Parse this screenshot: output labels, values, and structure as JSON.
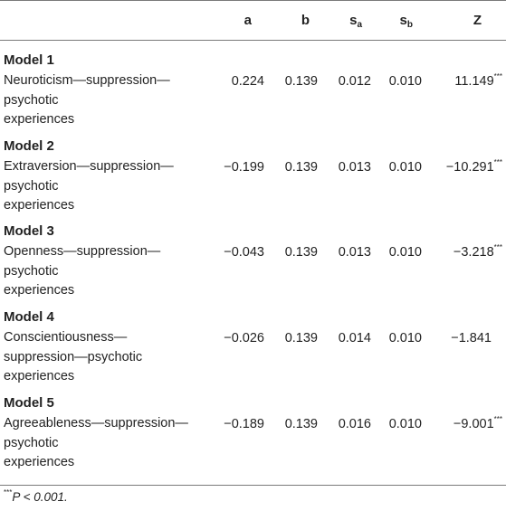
{
  "columns": {
    "a": "a",
    "b": "b",
    "sa_main": "s",
    "sa_sub": "a",
    "sb_main": "s",
    "sb_sub": "b",
    "z": "Z"
  },
  "models": [
    {
      "title": "Model 1",
      "label_lines": [
        "Neuroticism—suppression—",
        "psychotic",
        "experiences"
      ],
      "a": "0.224",
      "b": "0.139",
      "sa": "0.012",
      "sb": "0.010",
      "z": "11.149",
      "sig": "***"
    },
    {
      "title": "Model 2",
      "label_lines": [
        "Extraversion—suppression—",
        "psychotic",
        "experiences"
      ],
      "a": "−0.199",
      "b": "0.139",
      "sa": "0.013",
      "sb": "0.010",
      "z": "−10.291",
      "sig": "***"
    },
    {
      "title": "Model 3",
      "label_lines": [
        "Openness—suppression—",
        "psychotic",
        "experiences"
      ],
      "a": "−0.043",
      "b": "0.139",
      "sa": "0.013",
      "sb": "0.010",
      "z": "−3.218",
      "sig": "***"
    },
    {
      "title": "Model 4",
      "label_lines": [
        "Conscientiousness—",
        "suppression—psychotic",
        "experiences"
      ],
      "a": "−0.026",
      "b": "0.139",
      "sa": "0.014",
      "sb": "0.010",
      "z": "−1.841",
      "sig": ""
    },
    {
      "title": "Model 5",
      "label_lines": [
        "Agreeableness—suppression—",
        "psychotic",
        "experiences"
      ],
      "a": "−0.189",
      "b": "0.139",
      "sa": "0.016",
      "sb": "0.010",
      "z": "−9.001",
      "sig": "***"
    }
  ],
  "footnote": {
    "sig": "***",
    "text": "P < 0.001."
  }
}
